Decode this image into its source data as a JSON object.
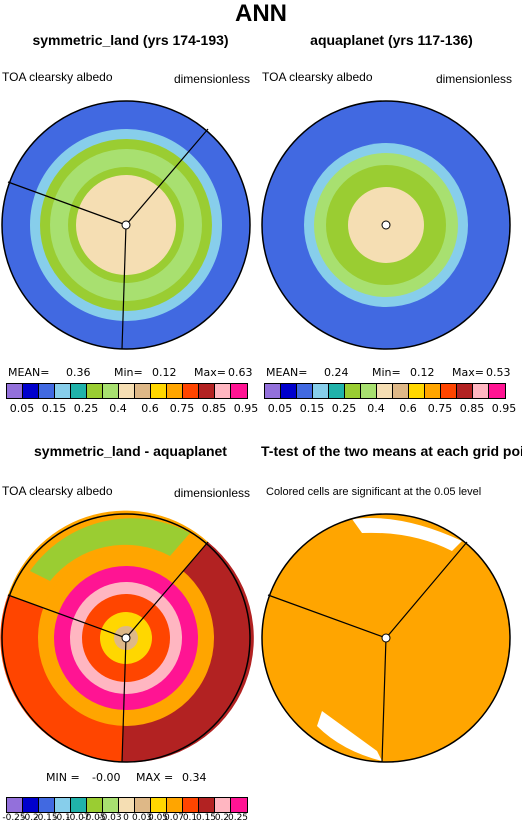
{
  "main_title": "ANN",
  "chart_data": [
    {
      "type": "heatmap",
      "title": "symmetric_land (yrs 174-193)",
      "variable": "TOA clearsky albedo",
      "units": "dimensionless",
      "stats": {
        "mean_label": "MEAN=",
        "mean": "0.36",
        "min_label": "Min=",
        "min": "0.12",
        "max_label": "Max=",
        "max": "0.63"
      },
      "colorbar_ticks": [
        "0.05",
        "0.15",
        "0.25",
        "0.4",
        "0.6",
        "0.75",
        "0.85",
        "0.95"
      ]
    },
    {
      "type": "heatmap",
      "title": "aquaplanet (yrs 117-136)",
      "variable": "TOA clearsky albedo",
      "units": "dimensionless",
      "stats": {
        "mean_label": "MEAN=",
        "mean": "0.24",
        "min_label": "Min=",
        "min": "0.12",
        "max_label": "Max=",
        "max": "0.53"
      },
      "colorbar_ticks": [
        "0.05",
        "0.15",
        "0.25",
        "0.4",
        "0.6",
        "0.75",
        "0.85",
        "0.95"
      ]
    },
    {
      "type": "heatmap",
      "title": "symmetric_land - aquaplanet",
      "variable": "TOA clearsky albedo",
      "units": "dimensionless",
      "stats": {
        "min_label": "MIN =",
        "min": "-0.00",
        "max_label": "MAX =",
        "max": "0.34"
      },
      "colorbar_ticks": [
        "-0.25",
        "-0.2",
        "-0.15",
        "-0.1",
        "-0.07",
        "-0.05",
        "-0.03",
        "0",
        "0.03",
        "0.05",
        "0.07",
        "0.1",
        "0.15",
        "0.2",
        "0.25"
      ]
    },
    {
      "type": "heatmap",
      "title": "T-test of the two means at each grid point",
      "note": "Colored cells are significant at the 0.05 level"
    }
  ],
  "colors": {
    "abs_scale": [
      "#9370db",
      "#0000cd",
      "#4169e1",
      "#87ceeb",
      "#20b2aa",
      "#9acd32",
      "#a8e070",
      "#f5deb3",
      "#deb887",
      "#ffd700",
      "#ffa500",
      "#ff4500",
      "#b22222",
      "#ffb6c1",
      "#ff1493"
    ],
    "sig": "#ffa500"
  }
}
